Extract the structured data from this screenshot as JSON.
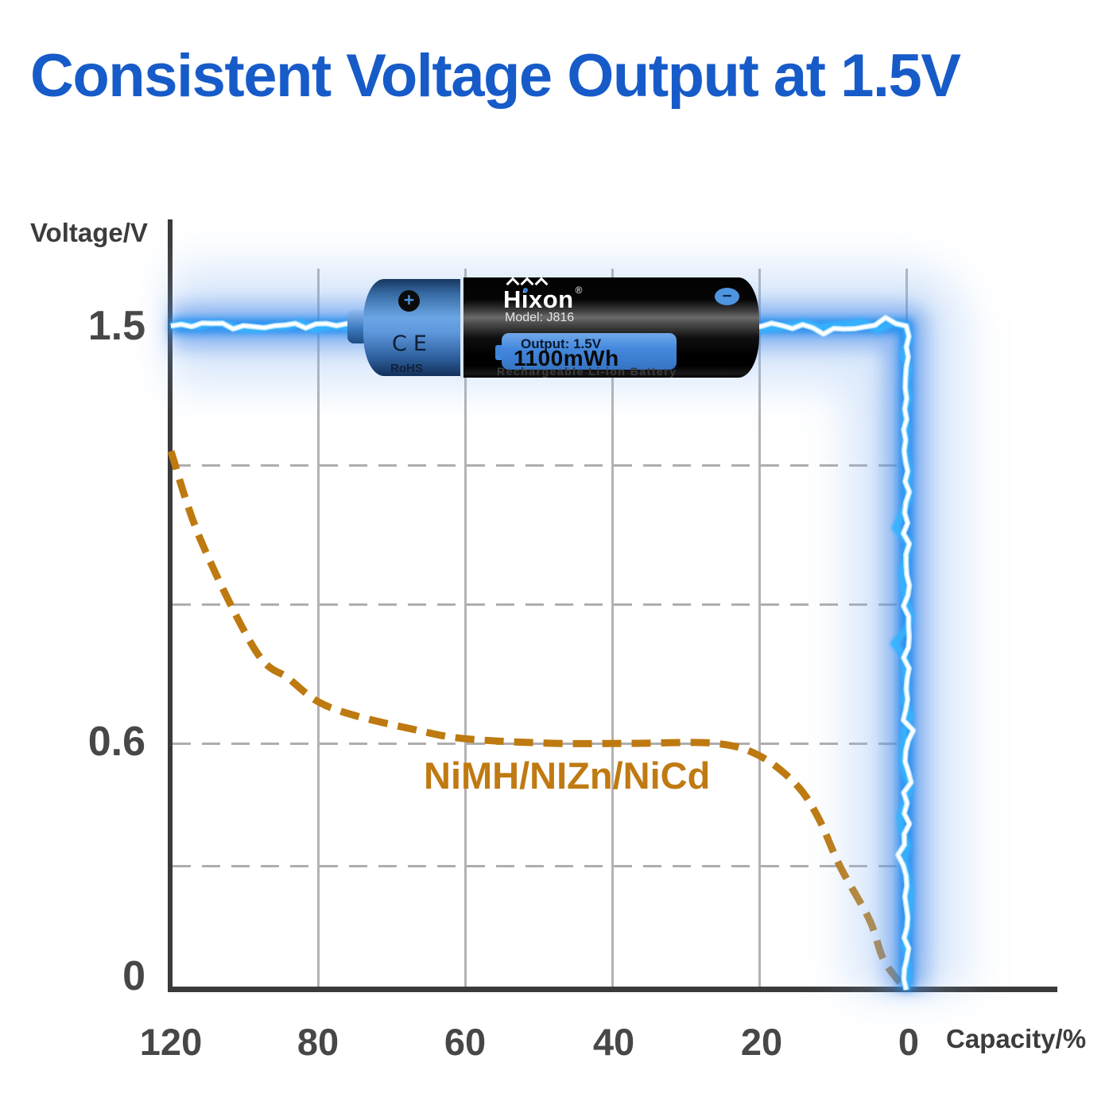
{
  "title": "Consistent Voltage Output at 1.5V",
  "colors": {
    "title_blue": "#175BC9",
    "lightning_blue": "#1f8ff0",
    "nimh_orange": "#C07A12",
    "axis_gray": "#3a3a3a",
    "tick_gray": "#474747",
    "gridline_gray": "#b3b3b3"
  },
  "chart": {
    "y_axis_label": "Voltage/V",
    "x_axis_label": "Capacity/%",
    "y_ticks": [
      "1.5",
      "0.6",
      "0"
    ],
    "x_ticks": [
      "120",
      "80",
      "60",
      "40",
      "20",
      "0"
    ],
    "series_label": "NiMH/NIZn/NiCd"
  },
  "battery": {
    "size_marking": "AAA",
    "brand": "Hixon",
    "registered_mark": "®",
    "model": "Model: J816",
    "output": "Output: 1.5V",
    "capacity": "1100mWh",
    "subtext": "Rechargeable Li-ion Battery",
    "cert_ce": "CE",
    "cert_rohs": "RoHS",
    "positive_symbol": "+",
    "negative_symbol": "−"
  },
  "chart_data": {
    "type": "line",
    "title": "Consistent Voltage Output at 1.5V",
    "xlabel": "Capacity/%",
    "ylabel": "Voltage/V",
    "x_tick_labels": [
      120,
      80,
      60,
      40,
      20,
      0
    ],
    "x_axis_note": "capacity decreases left to right, non-uniform first interval (120 to 80)",
    "y_tick_labels": [
      1.5,
      0.6,
      0
    ],
    "ylim": [
      0,
      1.8
    ],
    "grid": {
      "vertical_at_capacity": [
        80,
        60,
        40,
        20,
        0
      ],
      "horizontal_dashed_at_voltage": [
        1.2,
        0.9,
        0.6,
        0.3
      ]
    },
    "legend": {
      "position": "inline annotation on plot",
      "entries": [
        "NiMH/NIZn/NiCd"
      ]
    },
    "series": [
      {
        "name": "Hixon 1.5V Li-ion battery (lightning line)",
        "style": "lightning",
        "color": "#1f8ff0",
        "points": [
          [
            120,
            1.5
          ],
          [
            0,
            1.5
          ],
          [
            0,
            0
          ]
        ]
      },
      {
        "name": "NiMH/NIZn/NiCd",
        "style": "dashed",
        "color": "#BE7A10",
        "points": [
          [
            120,
            1.23
          ],
          [
            112,
            1.04
          ],
          [
            97,
            0.8
          ],
          [
            88,
            0.74
          ],
          [
            80,
            0.69
          ],
          [
            75,
            0.66
          ],
          [
            67,
            0.63
          ],
          [
            60,
            0.61
          ],
          [
            48,
            0.6
          ],
          [
            37,
            0.6
          ],
          [
            26,
            0.6
          ],
          [
            20,
            0.57
          ],
          [
            15,
            0.5
          ],
          [
            12,
            0.42
          ],
          [
            9,
            0.3
          ],
          [
            5,
            0.17
          ],
          [
            3,
            0.07
          ],
          [
            0,
            0
          ]
        ]
      }
    ]
  }
}
